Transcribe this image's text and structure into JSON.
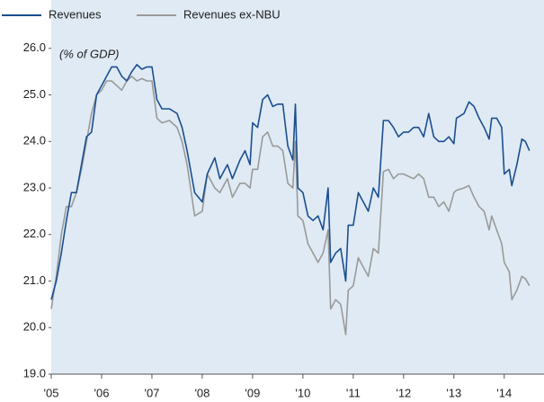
{
  "chart_data": {
    "type": "line",
    "annotation": "(% of GDP)",
    "x": [
      2005.0,
      2005.1,
      2005.2,
      2005.3,
      2005.4,
      2005.5,
      2005.6,
      2005.7,
      2005.8,
      2005.9,
      2006.0,
      2006.1,
      2006.2,
      2006.3,
      2006.4,
      2006.5,
      2006.6,
      2006.7,
      2006.8,
      2006.9,
      2007.0,
      2007.1,
      2007.2,
      2007.35,
      2007.5,
      2007.6,
      2007.7,
      2007.85,
      2008.0,
      2008.1,
      2008.25,
      2008.35,
      2008.5,
      2008.6,
      2008.75,
      2008.85,
      2008.95,
      2009.0,
      2009.1,
      2009.2,
      2009.3,
      2009.4,
      2009.5,
      2009.6,
      2009.7,
      2009.8,
      2009.85,
      2009.9,
      2010.0,
      2010.1,
      2010.2,
      2010.3,
      2010.4,
      2010.5,
      2010.55,
      2010.65,
      2010.75,
      2010.85,
      2010.9,
      2011.0,
      2011.1,
      2011.2,
      2011.3,
      2011.4,
      2011.5,
      2011.6,
      2011.7,
      2011.8,
      2011.9,
      2012.0,
      2012.1,
      2012.2,
      2012.3,
      2012.4,
      2012.5,
      2012.6,
      2012.7,
      2012.8,
      2012.9,
      2013.0,
      2013.05,
      2013.2,
      2013.3,
      2013.4,
      2013.5,
      2013.6,
      2013.7,
      2013.75,
      2013.85,
      2013.95,
      2014.0,
      2014.1,
      2014.15,
      2014.25,
      2014.35,
      2014.42,
      2014.5
    ],
    "series": [
      {
        "name": "Revenues",
        "color": "#1b4f8f",
        "values": [
          20.6,
          21.0,
          21.6,
          22.3,
          22.9,
          22.9,
          23.5,
          24.1,
          24.2,
          25.0,
          25.2,
          25.4,
          25.6,
          25.6,
          25.4,
          25.3,
          25.5,
          25.65,
          25.55,
          25.6,
          25.6,
          24.9,
          24.7,
          24.7,
          24.6,
          24.3,
          23.8,
          22.9,
          22.7,
          23.3,
          23.65,
          23.2,
          23.5,
          23.2,
          23.6,
          23.8,
          23.5,
          24.4,
          24.3,
          24.9,
          25.0,
          24.75,
          24.8,
          24.8,
          23.9,
          23.6,
          24.8,
          23.0,
          22.9,
          22.4,
          22.3,
          22.4,
          22.1,
          23.0,
          21.4,
          21.6,
          21.7,
          21.0,
          22.2,
          22.2,
          22.9,
          22.7,
          22.5,
          23.0,
          22.8,
          24.45,
          24.45,
          24.3,
          24.1,
          24.2,
          24.2,
          24.3,
          24.3,
          24.1,
          24.6,
          24.1,
          24.0,
          24.0,
          24.1,
          23.95,
          24.5,
          24.6,
          24.85,
          24.75,
          24.5,
          24.3,
          24.05,
          24.5,
          24.5,
          24.3,
          23.3,
          23.4,
          23.05,
          23.5,
          24.05,
          24.0,
          23.8
        ]
      },
      {
        "name": "Revenues ex-NBU",
        "color": "#9a9a9a",
        "values": [
          20.4,
          21.1,
          22.0,
          22.6,
          22.6,
          22.9,
          23.4,
          24.0,
          24.6,
          25.0,
          25.1,
          25.3,
          25.3,
          25.2,
          25.1,
          25.3,
          25.4,
          25.3,
          25.35,
          25.3,
          25.3,
          24.5,
          24.4,
          24.45,
          24.3,
          24.0,
          23.5,
          22.4,
          22.5,
          23.3,
          23.0,
          22.9,
          23.2,
          22.8,
          23.1,
          23.1,
          23.0,
          23.4,
          23.4,
          24.1,
          24.2,
          23.9,
          23.9,
          23.8,
          23.1,
          23.0,
          24.0,
          22.4,
          22.3,
          21.8,
          21.6,
          21.4,
          21.6,
          22.1,
          20.4,
          20.6,
          20.5,
          19.85,
          20.8,
          20.9,
          21.5,
          21.3,
          21.1,
          21.7,
          21.6,
          23.35,
          23.4,
          23.2,
          23.3,
          23.3,
          23.25,
          23.2,
          23.3,
          23.2,
          22.8,
          22.8,
          22.6,
          22.7,
          22.5,
          22.9,
          22.95,
          23.0,
          23.05,
          22.8,
          22.6,
          22.5,
          22.1,
          22.4,
          22.1,
          21.8,
          21.4,
          21.2,
          20.6,
          20.8,
          21.1,
          21.05,
          20.9
        ]
      }
    ],
    "xlim": [
      2005,
      2014.79
    ],
    "xticks": [
      {
        "value": 2005,
        "label": "'05"
      },
      {
        "value": 2006,
        "label": "'06"
      },
      {
        "value": 2007,
        "label": "'07"
      },
      {
        "value": 2008,
        "label": "'08"
      },
      {
        "value": 2009,
        "label": "'09"
      },
      {
        "value": 2010,
        "label": "'10"
      },
      {
        "value": 2011,
        "label": "'11"
      },
      {
        "value": 2012,
        "label": "'12"
      },
      {
        "value": 2013,
        "label": "'13"
      },
      {
        "value": 2014,
        "label": "'14"
      }
    ],
    "ylim": [
      19,
      27
    ],
    "yticks": [
      {
        "value": 19,
        "label": "19.0"
      },
      {
        "value": 20,
        "label": "20.0"
      },
      {
        "value": 21,
        "label": "21.0"
      },
      {
        "value": 22,
        "label": "22.0"
      },
      {
        "value": 23,
        "label": "23.0"
      },
      {
        "value": 24,
        "label": "24.0"
      },
      {
        "value": 25,
        "label": "25.0"
      },
      {
        "value": 26,
        "label": "26.0"
      }
    ],
    "legend": "top-left",
    "grid": false
  }
}
